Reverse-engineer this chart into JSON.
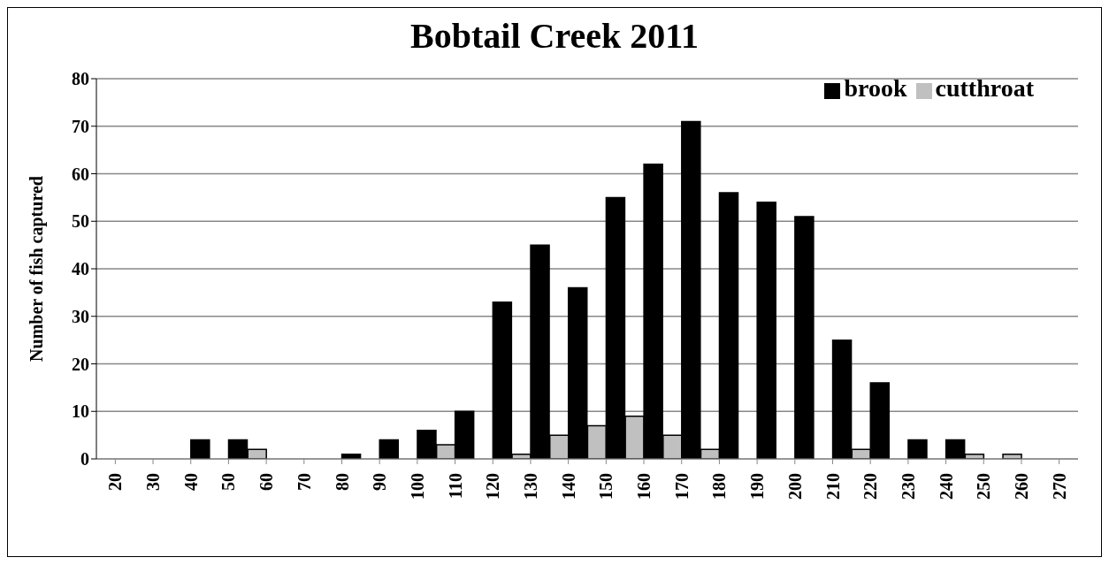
{
  "chart_data": {
    "type": "bar",
    "title": "Bobtail Creek 2011",
    "ylabel": "Number of fish captured",
    "categories": [
      "20",
      "30",
      "40",
      "50",
      "60",
      "70",
      "80",
      "90",
      "100",
      "110",
      "120",
      "130",
      "140",
      "150",
      "160",
      "170",
      "180",
      "190",
      "200",
      "210",
      "220",
      "230",
      "240",
      "250",
      "260",
      "270"
    ],
    "series": [
      {
        "name": "cutthroat",
        "color": "#c0c0c0",
        "values": [
          0,
          0,
          0,
          0,
          2,
          0,
          0,
          0,
          0,
          3,
          0,
          1,
          5,
          7,
          9,
          5,
          2,
          0,
          0,
          0,
          2,
          0,
          0,
          1,
          1,
          0
        ]
      },
      {
        "name": "brook",
        "color": "#000000",
        "values": [
          0,
          0,
          4,
          4,
          0,
          0,
          1,
          4,
          6,
          10,
          33,
          45,
          36,
          55,
          62,
          71,
          56,
          54,
          51,
          25,
          16,
          4,
          4,
          0,
          0,
          0
        ]
      }
    ],
    "ylim": [
      0,
      80
    ],
    "yticks": [
      0,
      10,
      20,
      30,
      40,
      50,
      60,
      70,
      80
    ],
    "grid": "y",
    "legend": "top right"
  }
}
